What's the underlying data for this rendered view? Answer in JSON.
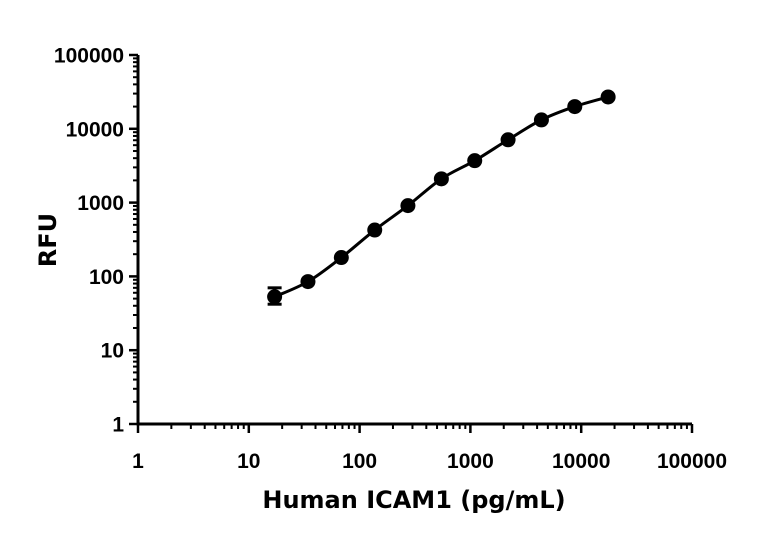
{
  "chart_data": {
    "type": "scatter",
    "subtype": "line-with-markers, log-log standard curve",
    "title": "",
    "xlabel": "Human ICAM1 (pg/mL)",
    "ylabel": "RFU",
    "xscale": "log",
    "yscale": "log",
    "xlim": [
      1,
      100000
    ],
    "ylim": [
      1,
      100000
    ],
    "x_tick_labels": [
      "1",
      "10",
      "100",
      "1000",
      "10000",
      "100000"
    ],
    "y_tick_labels": [
      "1",
      "10",
      "100",
      "1000",
      "10000",
      "100000"
    ],
    "grid": false,
    "legend": null,
    "series": [
      {
        "name": "Human ICAM1",
        "color": "#000000",
        "marker": "filled-circle",
        "line": "smooth fitted curve",
        "x": [
          17.1,
          34.2,
          68.4,
          137,
          273,
          547,
          1094,
          2188,
          4375,
          8750,
          17500
        ],
        "values": [
          53,
          85,
          180,
          425,
          910,
          2100,
          3700,
          7100,
          13200,
          20000,
          27000
        ],
        "error_low": [
          42,
          null,
          null,
          null,
          null,
          null,
          null,
          null,
          null,
          null,
          null
        ],
        "error_high": [
          70,
          null,
          null,
          null,
          null,
          null,
          null,
          null,
          null,
          null,
          null
        ]
      }
    ]
  },
  "labels": {
    "xlabel": "Human ICAM1 (pg/mL)",
    "ylabel": "RFU",
    "x_ticks": [
      "1",
      "10",
      "100",
      "1000",
      "10000",
      "100000"
    ],
    "y_ticks": [
      "1",
      "10",
      "100",
      "1000",
      "10000",
      "100000"
    ]
  }
}
